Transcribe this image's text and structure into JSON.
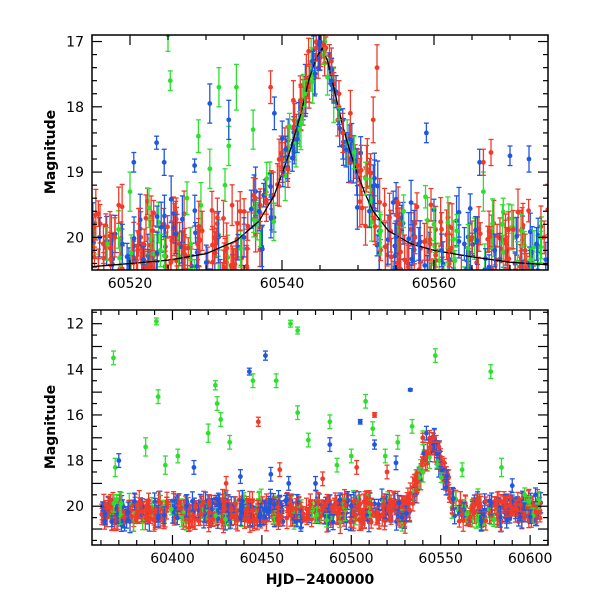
{
  "chart_data": [
    {
      "type": "scatter",
      "panel": "top",
      "xlabel": "",
      "ylabel": "Magnitude",
      "xlim": [
        60515,
        60575
      ],
      "ylim": [
        20.5,
        16.9
      ],
      "y_inverted": true,
      "x_ticks": [
        60520,
        60540,
        60560
      ],
      "y_ticks": [
        17,
        18,
        19,
        20
      ],
      "grid": false,
      "series_colors": {
        "green": "#2ee02e",
        "blue": "#1f57e0",
        "red": "#f03b2a",
        "model": "#000000"
      },
      "model_curve": {
        "x": [
          60515,
          60520,
          60525,
          60530,
          60534,
          60537,
          60539,
          60541,
          60542.5,
          60543.5,
          60544.5,
          60545.3,
          60546,
          60547,
          60548,
          60549,
          60550,
          60551,
          60552,
          60554,
          60557,
          60560,
          60565,
          60570,
          60575
        ],
        "y": [
          20.45,
          20.4,
          20.35,
          20.25,
          20.05,
          19.75,
          19.35,
          18.7,
          18.1,
          17.6,
          17.25,
          17.1,
          17.3,
          17.8,
          18.3,
          18.7,
          19.05,
          19.35,
          19.6,
          19.9,
          20.1,
          20.2,
          20.3,
          20.38,
          20.42
        ]
      },
      "series": [
        {
          "color": "green",
          "points": [
            [
              60525.0,
              16.9,
              0.25
            ],
            [
              60525.3,
              17.6,
              0.15
            ],
            [
              60531.7,
              17.7,
              0.3
            ],
            [
              60529.0,
              18.45,
              0.25
            ],
            [
              60534.0,
              17.7,
              0.35
            ],
            [
              60533.0,
              18.6,
              0.3
            ],
            [
              60536.2,
              18.35,
              0.3
            ],
            [
              60530.5,
              18.95,
              0.3
            ],
            [
              60520.0,
              19.3,
              0.3
            ],
            [
              60522.5,
              19.55,
              0.3
            ],
            [
              60527.5,
              19.4,
              0.25
            ],
            [
              60532.5,
              19.2,
              0.25
            ],
            [
              60538.0,
              19.1,
              0.25
            ],
            [
              60541.0,
              18.3,
              0.2
            ],
            [
              60543.0,
              17.8,
              0.2
            ],
            [
              60547.5,
              18.0,
              0.2
            ],
            [
              60549.5,
              18.7,
              0.25
            ],
            [
              60551.0,
              19.1,
              0.25
            ],
            [
              60556.0,
              19.6,
              0.25
            ],
            [
              60560.0,
              19.8,
              0.25
            ],
            [
              60563.0,
              19.9,
              0.25
            ],
            [
              60566.5,
              19.3,
              0.3
            ],
            [
              60569.0,
              19.8,
              0.3
            ],
            [
              60571.5,
              19.9,
              0.25
            ],
            [
              60574.0,
              20.0,
              0.25
            ],
            [
              60517.0,
              20.1,
              0.25
            ],
            [
              60524.0,
              20.2,
              0.25
            ],
            [
              60528.0,
              20.1,
              0.25
            ],
            [
              60545.5,
              17.2,
              0.15
            ],
            [
              60553.0,
              19.9,
              0.25
            ]
          ]
        },
        {
          "color": "blue",
          "points": [
            [
              60520.5,
              18.85,
              0.15
            ],
            [
              60524.5,
              18.85,
              0.2
            ],
            [
              60523.5,
              18.55,
              0.1
            ],
            [
              60530.5,
              17.95,
              0.3
            ],
            [
              60533.0,
              18.2,
              0.3
            ],
            [
              60539.0,
              18.1,
              0.25
            ],
            [
              60540.5,
              18.65,
              0.2
            ],
            [
              60528.5,
              18.9,
              0.1
            ],
            [
              60544.0,
              17.3,
              0.15
            ],
            [
              60545.0,
              17.0,
              0.15
            ],
            [
              60559.0,
              18.4,
              0.15
            ],
            [
              60566.0,
              18.85,
              0.2
            ],
            [
              60570.0,
              18.75,
              0.15
            ],
            [
              60572.5,
              18.8,
              0.2
            ],
            [
              60516.0,
              20.0,
              0.3
            ],
            [
              60519.0,
              20.1,
              0.3
            ],
            [
              60526.0,
              19.95,
              0.3
            ],
            [
              60535.0,
              20.0,
              0.3
            ],
            [
              60542.0,
              18.5,
              0.2
            ],
            [
              60548.0,
              18.6,
              0.2
            ],
            [
              60551.5,
              19.6,
              0.25
            ],
            [
              60555.0,
              20.0,
              0.25
            ],
            [
              60558.0,
              20.1,
              0.25
            ],
            [
              60561.0,
              20.2,
              0.25
            ],
            [
              60564.0,
              20.1,
              0.25
            ],
            [
              60568.0,
              20.2,
              0.25
            ],
            [
              60573.5,
              20.1,
              0.25
            ],
            [
              60537.0,
              19.6,
              0.3
            ],
            [
              60546.5,
              17.6,
              0.15
            ]
          ]
        },
        {
          "color": "red",
          "points": [
            [
              60538.5,
              17.7,
              0.25
            ],
            [
              60541.5,
              17.9,
              0.3
            ],
            [
              60543.5,
              17.15,
              0.2
            ],
            [
              60544.5,
              17.1,
              0.2
            ],
            [
              60545.5,
              17.05,
              0.2
            ],
            [
              60546.5,
              17.3,
              0.2
            ],
            [
              60548.0,
              18.4,
              0.3
            ],
            [
              60549.0,
              18.1,
              0.35
            ],
            [
              60552.5,
              17.4,
              0.35
            ],
            [
              60552.0,
              18.2,
              0.35
            ],
            [
              60566.5,
              18.85,
              0.2
            ],
            [
              60567.5,
              18.7,
              0.2
            ],
            [
              60516.5,
              20.1,
              0.3
            ],
            [
              60518.0,
              20.0,
              0.3
            ],
            [
              60521.0,
              20.2,
              0.3
            ],
            [
              60523.0,
              19.9,
              0.3
            ],
            [
              60525.5,
              20.05,
              0.3
            ],
            [
              60527.0,
              20.2,
              0.3
            ],
            [
              60529.5,
              19.9,
              0.3
            ],
            [
              60531.5,
              19.7,
              0.3
            ],
            [
              60534.5,
              19.6,
              0.3
            ],
            [
              60536.5,
              19.4,
              0.3
            ],
            [
              60540.0,
              18.8,
              0.25
            ],
            [
              60542.5,
              17.9,
              0.2
            ],
            [
              60547.5,
              17.8,
              0.2
            ],
            [
              60550.0,
              18.9,
              0.25
            ],
            [
              60553.5,
              19.5,
              0.25
            ],
            [
              60555.5,
              19.8,
              0.25
            ],
            [
              60557.5,
              20.0,
              0.25
            ],
            [
              60559.5,
              20.1,
              0.25
            ],
            [
              60562.0,
              20.2,
              0.25
            ],
            [
              60565.0,
              20.0,
              0.25
            ],
            [
              60569.5,
              20.1,
              0.25
            ],
            [
              60572.0,
              20.2,
              0.25
            ],
            [
              60574.5,
              20.0,
              0.25
            ]
          ]
        }
      ]
    },
    {
      "type": "scatter",
      "panel": "bottom",
      "xlabel": "HJD−2400000",
      "ylabel": "Magnitude",
      "xlim": [
        60355,
        60610
      ],
      "ylim": [
        21.7,
        11.4
      ],
      "y_inverted": true,
      "x_ticks": [
        60400,
        60450,
        60500,
        60550,
        60600
      ],
      "y_ticks": [
        12,
        14,
        16,
        18,
        20
      ],
      "grid": false,
      "series_colors": {
        "green": "#2ee02e",
        "blue": "#1f57e0",
        "red": "#f03b2a"
      },
      "series": [
        {
          "color": "green",
          "points": [
            [
              60367,
              13.5,
              0.3
            ],
            [
              60391,
              11.9,
              0.15
            ],
            [
              60392,
              15.2,
              0.3
            ],
            [
              60368,
              18.3,
              0.4
            ],
            [
              60385,
              17.4,
              0.4
            ],
            [
              60396,
              18.2,
              0.4
            ],
            [
              60403,
              17.8,
              0.3
            ],
            [
              60420,
              16.8,
              0.4
            ],
            [
              60424,
              14.7,
              0.2
            ],
            [
              60425,
              15.5,
              0.3
            ],
            [
              60427,
              16.2,
              0.3
            ],
            [
              60432,
              17.2,
              0.3
            ],
            [
              60445,
              14.5,
              0.3
            ],
            [
              60458,
              14.5,
              0.3
            ],
            [
              60466,
              12.0,
              0.15
            ],
            [
              60470,
              12.3,
              0.15
            ],
            [
              60470,
              15.9,
              0.3
            ],
            [
              60476,
              17.1,
              0.3
            ],
            [
              60488,
              16.3,
              0.3
            ],
            [
              60492,
              18.2,
              0.3
            ],
            [
              60500,
              17.8,
              0.3
            ],
            [
              60508,
              15.4,
              0.3
            ],
            [
              60512,
              16.6,
              0.3
            ],
            [
              60519,
              17.8,
              0.3
            ],
            [
              60526,
              17.2,
              0.3
            ],
            [
              60534,
              16.5,
              0.3
            ],
            [
              60540,
              17.0,
              0.3
            ],
            [
              60547,
              13.4,
              0.3
            ],
            [
              60562,
              18.4,
              0.3
            ],
            [
              60578,
              14.1,
              0.3
            ],
            [
              60584,
              18.3,
              0.4
            ],
            [
              60597,
              19.5,
              0.3
            ]
          ]
        },
        {
          "color": "blue",
          "points": [
            [
              60370,
              18.0,
              0.3
            ],
            [
              60443,
              14.1,
              0.15
            ],
            [
              60452,
              13.4,
              0.2
            ],
            [
              60455,
              18.6,
              0.3
            ],
            [
              60488,
              17.3,
              0.3
            ],
            [
              60505,
              16.3,
              0.1
            ],
            [
              60525,
              18.1,
              0.3
            ],
            [
              60533,
              14.9,
              0.05
            ],
            [
              60513,
              17.3,
              0.2
            ],
            [
              60542,
              16.8,
              0.3
            ],
            [
              60590,
              19.1,
              0.3
            ],
            [
              60603,
              19.5,
              0.3
            ],
            [
              60412,
              18.3,
              0.3
            ],
            [
              60438,
              18.7,
              0.3
            ],
            [
              60465,
              19.0,
              0.3
            ],
            [
              60480,
              19.0,
              0.3
            ]
          ]
        },
        {
          "color": "red",
          "points": [
            [
              60448,
              16.3,
              0.2
            ],
            [
              60460,
              18.4,
              0.3
            ],
            [
              60503,
              18.3,
              0.3
            ],
            [
              60513,
              16.0,
              0.1
            ],
            [
              60520,
              18.5,
              0.3
            ],
            [
              60540,
              17.0,
              0.2
            ],
            [
              60546,
              17.0,
              0.2
            ],
            [
              60549,
              17.4,
              0.2
            ],
            [
              60552,
              18.1,
              0.2
            ],
            [
              60544,
              17.2,
              0.2
            ],
            [
              60484,
              18.8,
              0.3
            ],
            [
              60430,
              19.0,
              0.3
            ]
          ]
        }
      ],
      "dense_band": {
        "x_range": [
          60360,
          60606
        ],
        "baseline_mag": 20.2,
        "scatter_mag": 0.5,
        "outburst_peak_x": 60545,
        "outburst_peak_mag": 17.1
      }
    }
  ]
}
